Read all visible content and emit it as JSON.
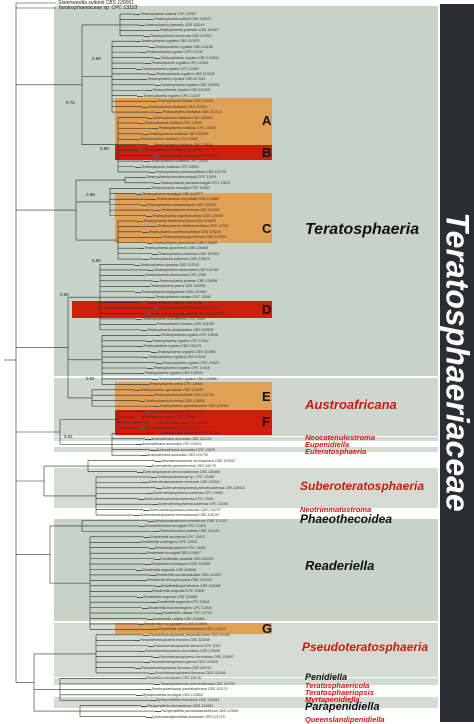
{
  "figure": {
    "family": "Teratosphaeriaceae",
    "top_taxa": [
      "Staninwardia suttonii CBS 120061",
      "Teratosphaeriaceae sp. CPC 13123"
    ],
    "clades": [
      {
        "letter": "A",
        "color": "#e0a055"
      },
      {
        "letter": "B",
        "color": "#d01e0c"
      },
      {
        "letter": "C",
        "color": "#e0a055"
      },
      {
        "letter": "D",
        "color": "#d01e0c"
      },
      {
        "letter": "E",
        "color": "#e0a055"
      },
      {
        "letter": "F",
        "color": "#d01e0c"
      },
      {
        "letter": "G",
        "color": "#e0a055"
      }
    ],
    "genera": [
      {
        "name": "Teratosphaeria",
        "color": "#111111"
      },
      {
        "name": "Austroafricana",
        "color": "#cc1a10"
      },
      {
        "name": "Neocatenulostroma",
        "color": "#cc1a10"
      },
      {
        "name": "Eupenidiella",
        "color": "#cc1a10"
      },
      {
        "name": "Euteratosphaeria",
        "color": "#cc1a10"
      },
      {
        "name": "Suberoteratosphaeria",
        "color": "#cc1a10"
      },
      {
        "name": "Neotrimmatostroma",
        "color": "#cc1a10"
      },
      {
        "name": "Phaeothecoidea",
        "color": "#111111"
      },
      {
        "name": "Readeriella",
        "color": "#111111"
      },
      {
        "name": "Pseudoteratosphaeria",
        "color": "#cc1a10"
      },
      {
        "name": "Penidiella",
        "color": "#111111"
      },
      {
        "name": "Teratosphaericola",
        "color": "#cc1a10"
      },
      {
        "name": "Teratosphaeriopsis",
        "color": "#cc1a10"
      },
      {
        "name": "Myrtapenidiella",
        "color": "#cc1a10"
      },
      {
        "name": "Parapenidiella",
        "color": "#111111"
      },
      {
        "name": "Queenslandipenidiella",
        "color": "#cc1a10"
      }
    ],
    "taxa": [
      "Teratosphaeria suttonii CPC 12352",
      "Teratosphaeria suttonii CBS 119973",
      "Teratosphaeria juvenalis CBS 111149",
      "Teratosphaeria juvenalis CBS 116427",
      "Teratosphaeria verrucosa CBS 113621",
      "Teratosphaeria cryptica CBS 110975",
      "Teratosphaeria cryptica CBS 111169",
      "Teratosphaeria cryptica CPC 12232",
      "Teratosphaeria cryptica CBS 120903",
      "Teratosphaeria cryptica CPC 12424",
      "Teratosphaeria cryptica CPC 12565",
      "Teratosphaeria cryptica CBS 117618",
      "Teratosphaeria cryptica CBS 117619",
      "Teratosphaeria cryptica CBS 116006",
      "Teratosphaeria cryptica CBS 110500",
      "Teratosphaeria cryptica CPC 12229",
      "Teratosphaeria biolata CBS 120301",
      "Teratosphaeria bioldana CBS 113311",
      "Teratosphaeria bioldana CBS 113313",
      "Teratosphaeria nubilosa CBS 116283",
      "Teratosphaeria nubilosa CPC 13844",
      "Teratosphaeria nubilosa CPC 13845",
      "Teratosphaeria nubilosa CBS 116005",
      "Teratosphaeria nubilosa CPC 13828",
      "Teratosphaeria nubilosa CPC 13826",
      "Teratosphaeria nubilosa CPC 13825",
      "Teratosphaeria nubilosa CPC 12235",
      "Teratosphaeria nubilosa CPC 12830",
      "Teratosphaeria nubilosa CPC 13833",
      "Teratosphaeria pseudonubilosa CBS 112728",
      "Teratosphaeria pseudoeucalypti CPC 13816",
      "Teratosphaeria pseudoeucalypti CPC 13831",
      "Teratosphaeria eucalypti CPC 12552",
      "Teratosphaeria eucalypti CBS 124577",
      "Teratosphaeria corymbiae CBS 124988",
      "Teratosphaeria considenianae CBS 120302",
      "Teratosphaeria ohnowa CBS 112896",
      "Teratosphaeria majorizuluensis CBS 120040",
      "Teratosphaeria stellenboschiana CBS 116428",
      "Teratosphaeria stellenboschiana CPC 13764",
      "Teratosphaeria stellenboschiana CBS 125215",
      "Teratosphaeria gauchensis CBS 120303",
      "Teratosphaeria gauchensis CBS 119465",
      "Teratosphaeria gauchensis CBS 119468",
      "Teratosphaeria zuluensis CBS 120301",
      "Teratosphaeria zuluensis CBS 119470",
      "Teratosphaeria aurantia CBS 125243",
      "Teratosphaeria destructans CBS 111369",
      "Teratosphaeria destructans CPC 1368",
      "Teratosphaeria proteae CBS 124586",
      "Teratosphaeria parva CBS 116289",
      "Teratosphaeria angophorae CBS 120493",
      "Teratosphaeria miniata CPC 13090",
      "Teratosphaeria fibrillosa CPC 1876",
      "Teratosphaeria fibrillosa CBS 121707",
      "Teratosphaeria jonkershoekensis CBS 122897",
      "Teratosphaeria maculiformis CPC 1499",
      "Teratosphaeria hortaris CBS 124156",
      "Teratosphaeria pluritubularis CBS 118508",
      "Teratosphaeria cryptica CPC 13839",
      "Teratosphaeria cryptica CPC 13842",
      "Teratosphaeria cryptica CBS 111679",
      "Teratosphaeria cryptica CBS 110996",
      "Teratosphaeria cryptica CBS 111164",
      "Teratosphaeria cryptica CPC 13823",
      "Teratosphaeria cryptica CPC 13415",
      "Teratosphaeria cryptica CBS 125004",
      "Teratosphaeria cryptica CBS 124898",
      "Teratosphaeria veloci CPC 14600",
      "Teratosphaeria syncarpiae CBS 121160",
      "Teratosphaeria fimbriata CBS 120736",
      "Teratosphaeria fimbriata CBS 120893",
      "Teratosphaeria pseudosuttonii CBS 124044",
      "Austroafricana parva CBS 116289",
      "Austroafricana parva CBS 122892",
      "Austroafricana parva CPC 12419",
      "Austroafricana parva CPC 12249",
      "Austroafricana associata CPC 13119",
      "Austroafricana associata CBS 112224",
      "Austroafricana associata CPC 13104",
      "Austroafricana associata CPC 13120",
      "Austroafricana associata CBS 120730",
      "Neocatenulostroma microsporum CBS 101951",
      "Eupenidiella venezuelensis CBS 106.75",
      "Euteratosphaeria verrucosiafricana CBS 118496",
      "Teratosphaeriaceae sp. CPC 12349",
      "Suberoteratosphaeria mexicana CBS 110502",
      "Suberoteratosphaeria pseudosuberosa CBS 118911",
      "Suberoteratosphaeria suberosa CPC 13090",
      "Suberoteratosphaeria suberosa CPC 13091",
      "Suberoteratosphaeria suberosa CPC 13106",
      "Suberoteratosphaeria suberosa CBS 134747",
      "Suberoteratosphaeria xenosuberosa CBS 134747",
      "Neotrimmatostroma excentricum CBS 121102",
      "Phaeothecoidea eucalypti CPC 12918",
      "Phaeothecoidea proteae CBS 114129",
      "Readeriella tasmanica CPC 13631",
      "Readeriella nontingens CPC 13602",
      "Readeriella patrickii CPC 13602",
      "Readeriella eucalypti CBS 124807",
      "Readeriella mirabilis CBS 116293",
      "Readeriella minutispora CBS 124596",
      "Readeriella angustia CBS 124998",
      "Readeriella novaezelandiae CBS 114357",
      "Readeriella dimorphospora CBS 120034",
      "Readeriella pulcherrima CBS 124098",
      "Readeriella angustia CPC 13608",
      "Readeriella angustia CBS 124998",
      "Readeriella angustia CPC 13618",
      "Readeriella brunneotingens CPC 13303",
      "Readeriella callista CPC 12715",
      "Readeriella callista CBS 124986",
      "Readeriella eucalyptigena CBS 124999",
      "Readeriella stellenboschiana CBS 125123",
      "Pseudoteratosphaeria perpendicularis CBS 118367",
      "Pseudoteratosphaeria ohnowa CBS 110949",
      "Pseudoteratosphaeria ohnowa CPC 1004",
      "Pseudoteratosphaeria secundaria CBS 115608",
      "Pseudoteratosphaeria secundaria CBS 118507",
      "Pseudoteratosphaeria gamsii CBS 120035",
      "Pseudoteratosphaeria flexuosa CBS 111012",
      "Pseudoteratosphaeria flexuosa CBS 111048",
      "Penidiella columbiana CBS 486.80",
      "Teratosphaericola pseudoafricana CBS 114782",
      "Teratosphaeriopsis pseudoafricana CBS 111171",
      "Myrtapenidiella eucalypti CBS 124584",
      "Myrtapenidiella tenuiramis CBS 124993",
      "Parapenidiella tasmaniensis CBS 124991",
      "Parapenidiella pseudotasmaniensis CBS 124991",
      "Queenslandipenidiella kurandae CBS 121715"
    ],
    "support_values": [
      "0.99",
      "0.75",
      "0.99",
      "0.98",
      "0.99",
      "0.98",
      "0.81",
      "0.91"
    ]
  }
}
